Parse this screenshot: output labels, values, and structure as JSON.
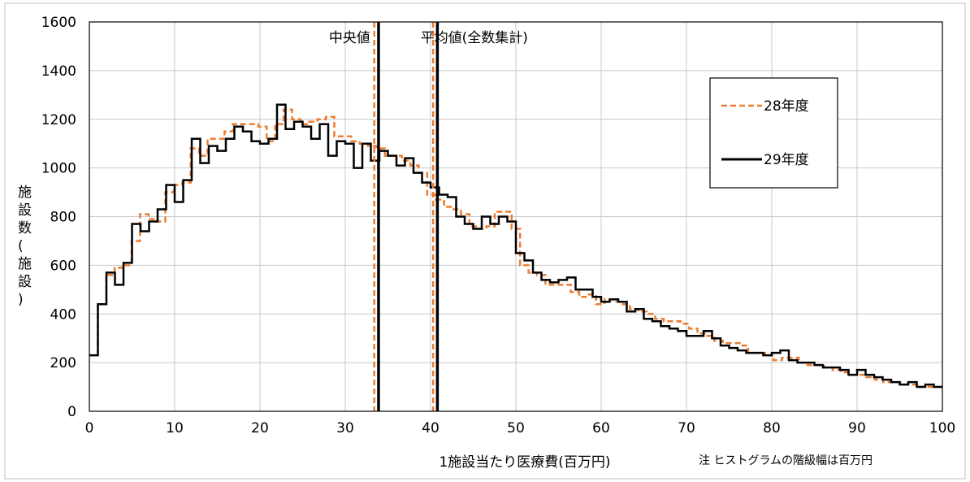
{
  "chart_data": {
    "type": "line",
    "step": true,
    "xlabel": "1施設当たり医療費(百万円)",
    "ylabel": "施設数(施設)",
    "xlim": [
      0,
      100
    ],
    "ylim": [
      0,
      1600
    ],
    "xticks": [
      0,
      10,
      20,
      30,
      40,
      50,
      60,
      70,
      80,
      90,
      100
    ],
    "yticks": [
      0,
      200,
      400,
      600,
      800,
      1000,
      1200,
      1400,
      1600
    ],
    "grid": true,
    "legend_position": "top-right",
    "note": "注 ヒストグラムの階級幅は百万円",
    "series": [
      {
        "name": "28年度",
        "color": "#ED7D31",
        "style": "dashed",
        "values": [
          230,
          440,
          560,
          590,
          600,
          700,
          810,
          790,
          780,
          900,
          930,
          940,
          1080,
          1050,
          1120,
          1120,
          1150,
          1180,
          1180,
          1180,
          1170,
          1110,
          1180,
          1240,
          1200,
          1180,
          1190,
          1200,
          1210,
          1130,
          1130,
          1110,
          1100,
          1090,
          1080,
          1050,
          1050,
          1030,
          1010,
          980,
          890,
          870,
          840,
          830,
          810,
          760,
          750,
          760,
          820,
          820,
          750,
          600,
          570,
          560,
          520,
          520,
          520,
          490,
          470,
          480,
          440,
          460,
          450,
          440,
          420,
          410,
          400,
          380,
          370,
          370,
          360,
          340,
          320,
          310,
          290,
          280,
          280,
          270,
          240,
          240,
          230,
          210,
          220,
          220,
          200,
          190,
          190,
          180,
          170,
          160,
          150,
          150,
          140,
          130,
          120,
          120,
          110,
          110,
          100,
          100,
          100
        ]
      },
      {
        "name": "29年度",
        "color": "#000000",
        "style": "solid",
        "values": [
          230,
          440,
          570,
          520,
          610,
          770,
          740,
          780,
          830,
          930,
          860,
          950,
          1120,
          1020,
          1090,
          1070,
          1120,
          1170,
          1150,
          1110,
          1100,
          1120,
          1260,
          1160,
          1190,
          1170,
          1120,
          1180,
          1050,
          1110,
          1100,
          1000,
          1100,
          1030,
          1070,
          1050,
          1010,
          1040,
          980,
          940,
          920,
          890,
          880,
          800,
          770,
          750,
          800,
          770,
          800,
          780,
          650,
          620,
          570,
          540,
          530,
          540,
          550,
          500,
          500,
          470,
          450,
          460,
          450,
          410,
          420,
          380,
          370,
          350,
          340,
          330,
          310,
          310,
          330,
          300,
          270,
          260,
          250,
          240,
          240,
          230,
          240,
          250,
          210,
          200,
          200,
          190,
          180,
          180,
          170,
          150,
          170,
          150,
          140,
          130,
          120,
          110,
          120,
          100,
          110,
          100
        ]
      }
    ],
    "vlines": [
      {
        "label": "中央値",
        "value_28": 33.4,
        "value_29": 33.9
      },
      {
        "label": "平均値(全数集計)",
        "value_28": 40.3,
        "value_29": 40.8
      }
    ]
  }
}
